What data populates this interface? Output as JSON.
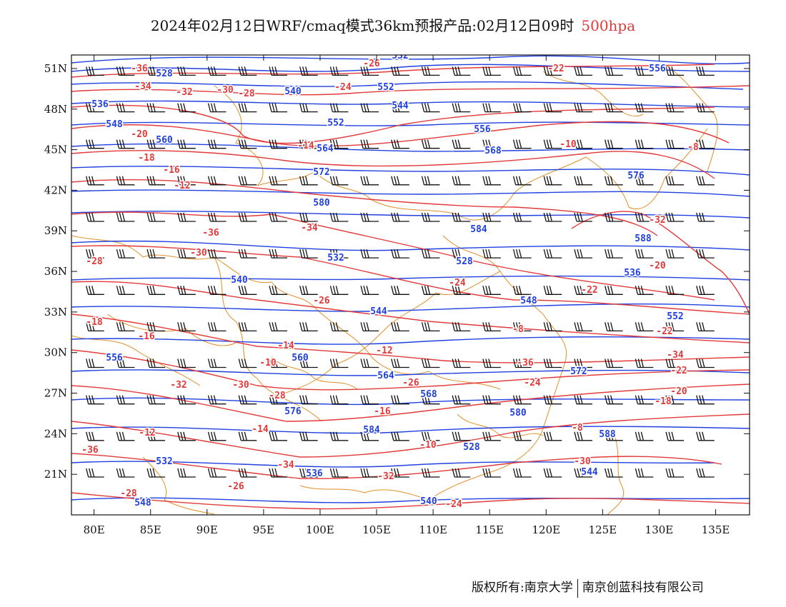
{
  "title": {
    "prefix": "2024年02月12日WRF/cmaq模式36km预报产品:02月12日09时",
    "level": "500hpa"
  },
  "axes": {
    "lon_range": [
      78,
      138
    ],
    "lat_range": [
      18,
      52
    ],
    "x_ticks": [
      "80E",
      "85E",
      "90E",
      "95E",
      "100E",
      "105E",
      "110E",
      "115E",
      "120E",
      "125E",
      "130E",
      "135E"
    ],
    "y_ticks": [
      "51N",
      "48N",
      "45N",
      "42N",
      "39N",
      "36N",
      "33N",
      "30N",
      "27N",
      "24N",
      "21N"
    ]
  },
  "colors": {
    "height_contour": "#2040e0",
    "temperature_contour": "#e23a3a",
    "boundary": "#e0902a",
    "wind_barb": "#111111"
  },
  "height_labels": [
    "532",
    "528",
    "536",
    "540",
    "544",
    "548",
    "552",
    "556",
    "560",
    "564",
    "568",
    "572",
    "576",
    "580",
    "584",
    "588"
  ],
  "temperature_labels": [
    "-36",
    "-34",
    "-32",
    "-30",
    "-28",
    "-26",
    "-24",
    "-22",
    "-20",
    "-18",
    "-16",
    "-14",
    "-12",
    "-10",
    "-8"
  ],
  "footer": {
    "left": "版权所有:南京大学",
    "right": "南京创蓝科技有限公司"
  }
}
